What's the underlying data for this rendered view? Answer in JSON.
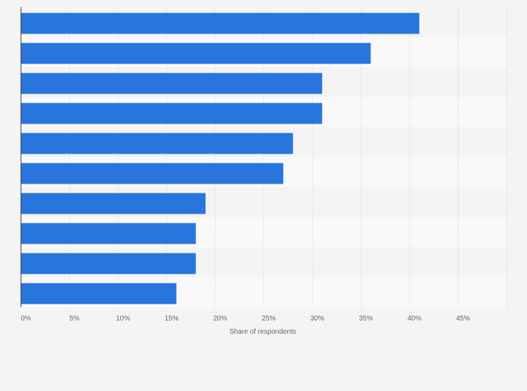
{
  "chart_data": {
    "type": "bar",
    "orientation": "horizontal",
    "title": "",
    "xlabel": "Share of respondents",
    "ylabel": "",
    "categories": [
      "",
      "",
      "",
      "",
      "",
      "",
      "",
      "",
      "",
      ""
    ],
    "values": [
      41,
      36,
      31,
      31,
      28,
      27,
      19,
      18,
      18,
      16
    ],
    "value_unit": "%",
    "xlim": [
      0,
      50
    ],
    "xticks": [
      "0%",
      "5%",
      "10%",
      "15%",
      "20%",
      "25%",
      "30%",
      "35%",
      "40%",
      "45%"
    ],
    "grid": true,
    "bar_color": "#2876dd",
    "background_color": "#f4f4f4",
    "row_alt_color": "#f9f9f9"
  }
}
